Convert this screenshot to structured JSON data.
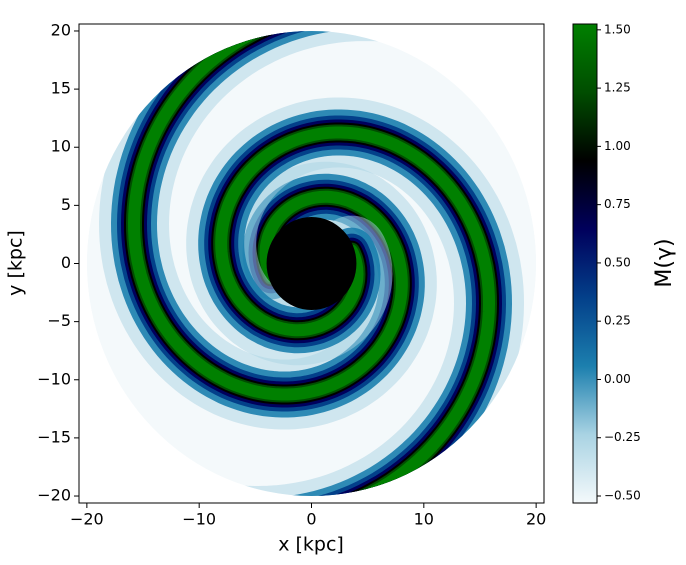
{
  "chart_data": {
    "type": "heatmap",
    "xlabel": "x [kpc]",
    "ylabel": "y [kpc]",
    "xlim": [
      -20.7,
      20.7
    ],
    "ylim": [
      -20.6,
      20.6
    ],
    "xticks": [
      {
        "value": -20,
        "label": "−20"
      },
      {
        "value": -10,
        "label": "−10"
      },
      0,
      10,
      20
    ],
    "yticks": [
      {
        "value": -20,
        "label": "−20"
      },
      {
        "value": -15,
        "label": "−15"
      },
      {
        "value": -10,
        "label": "−10"
      },
      {
        "value": -5,
        "label": "−5"
      },
      0,
      5,
      10,
      15,
      20
    ],
    "colors": [
      "#f4f9fb",
      "#a9d3e3",
      "#1c7fae",
      "#03408a",
      "#00005c",
      "#000000",
      "#004d00",
      "#008000"
    ],
    "colorbar": {
      "label": "M(γ)",
      "lim": [
        -0.53,
        1.525
      ],
      "ticks": [
        {
          "value": -0.5,
          "label": "−0.50"
        },
        {
          "value": -0.25,
          "label": "−0.25"
        },
        {
          "value": 0,
          "label": "0.00"
        },
        {
          "value": 0.25,
          "label": "0.25"
        },
        {
          "value": 0.5,
          "label": "0.50"
        },
        {
          "value": 0.75,
          "label": "0.75"
        },
        {
          "value": 1,
          "label": "1.00"
        },
        {
          "value": 1.25,
          "label": "1.25"
        },
        {
          "value": 1.5,
          "label": "1.50"
        }
      ]
    }
  }
}
